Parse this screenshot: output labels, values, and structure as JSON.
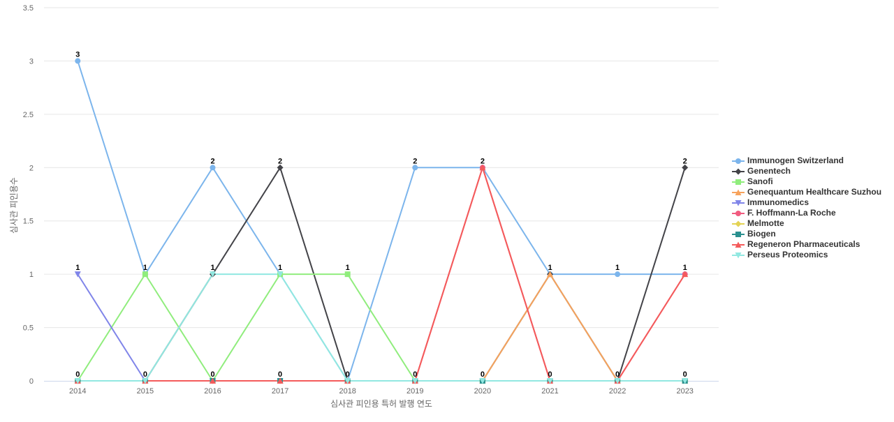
{
  "chart_data": {
    "type": "line",
    "title": "",
    "xlabel": "심사관 피인용 특허 발행 연도",
    "ylabel": "심사관 피인용수",
    "x": [
      "2014",
      "2015",
      "2016",
      "2017",
      "2018",
      "2019",
      "2020",
      "2021",
      "2022",
      "2023"
    ],
    "ylim": [
      0,
      3.5
    ],
    "yticks": [
      "0",
      "0.5",
      "1",
      "1.5",
      "2",
      "2.5",
      "3",
      "3.5"
    ],
    "grid": true,
    "legend_position": "right",
    "series": [
      {
        "name": "Immunogen Switzerland",
        "color": "#7cb5ec",
        "marker": "circle",
        "values": [
          3,
          1,
          2,
          1,
          0,
          2,
          2,
          1,
          1,
          1
        ]
      },
      {
        "name": "Genentech",
        "color": "#434348",
        "marker": "diamond",
        "values": [
          0,
          0,
          1,
          2,
          0,
          0,
          0,
          1,
          0,
          2
        ]
      },
      {
        "name": "Sanofi",
        "color": "#90ed7d",
        "marker": "square",
        "values": [
          0,
          1,
          0,
          1,
          1,
          0,
          0,
          0,
          0,
          0
        ]
      },
      {
        "name": "Genequantum Healthcare Suzhou",
        "color": "#f7a35c",
        "marker": "triangle",
        "values": [
          0,
          0,
          0,
          0,
          0,
          0,
          0,
          1,
          0,
          0
        ]
      },
      {
        "name": "Immunomedics",
        "color": "#8085e9",
        "marker": "triangle-down",
        "values": [
          1,
          0,
          0,
          0,
          0,
          0,
          0,
          0,
          0,
          0
        ]
      },
      {
        "name": "F. Hoffmann-La Roche",
        "color": "#f15c80",
        "marker": "circle",
        "values": [
          0,
          0,
          0,
          0,
          0,
          0,
          2,
          0,
          0,
          1
        ]
      },
      {
        "name": "Melmotte",
        "color": "#e4d354",
        "marker": "diamond",
        "values": [
          0,
          0,
          0,
          0,
          0,
          0,
          0,
          0,
          0,
          0
        ]
      },
      {
        "name": "Biogen",
        "color": "#2b908f",
        "marker": "square",
        "values": [
          0,
          0,
          0,
          0,
          0,
          0,
          0,
          0,
          0,
          0
        ]
      },
      {
        "name": "Regeneron Pharmaceuticals",
        "color": "#f45b5b",
        "marker": "triangle",
        "values": [
          0,
          0,
          0,
          0,
          0,
          0,
          2,
          0,
          0,
          1
        ]
      },
      {
        "name": "Perseus Proteomics",
        "color": "#91e8e1",
        "marker": "triangle-down",
        "values": [
          0,
          0,
          1,
          1,
          0,
          0,
          0,
          0,
          0,
          0
        ]
      }
    ],
    "data_labels": [
      {
        "x": "2014",
        "text": "3",
        "y": 3
      },
      {
        "x": "2014",
        "text": "1",
        "y": 1
      },
      {
        "x": "2014",
        "text": "0",
        "y": 0
      },
      {
        "x": "2015",
        "text": "1",
        "y": 1
      },
      {
        "x": "2015",
        "text": "0",
        "y": 0
      },
      {
        "x": "2016",
        "text": "2",
        "y": 2
      },
      {
        "x": "2016",
        "text": "1",
        "y": 1
      },
      {
        "x": "2016",
        "text": "0",
        "y": 0
      },
      {
        "x": "2017",
        "text": "2",
        "y": 2
      },
      {
        "x": "2017",
        "text": "1",
        "y": 1
      },
      {
        "x": "2017",
        "text": "0",
        "y": 0
      },
      {
        "x": "2018",
        "text": "1",
        "y": 1
      },
      {
        "x": "2018",
        "text": "0",
        "y": 0
      },
      {
        "x": "2019",
        "text": "2",
        "y": 2
      },
      {
        "x": "2019",
        "text": "0",
        "y": 0
      },
      {
        "x": "2020",
        "text": "2",
        "y": 2
      },
      {
        "x": "2020",
        "text": "0",
        "y": 0
      },
      {
        "x": "2021",
        "text": "1",
        "y": 1
      },
      {
        "x": "2021",
        "text": "0",
        "y": 0
      },
      {
        "x": "2022",
        "text": "1",
        "y": 1
      },
      {
        "x": "2022",
        "text": "0",
        "y": 0
      },
      {
        "x": "2023",
        "text": "2",
        "y": 2
      },
      {
        "x": "2023",
        "text": "1",
        "y": 1
      },
      {
        "x": "2023",
        "text": "0",
        "y": 0
      }
    ]
  }
}
